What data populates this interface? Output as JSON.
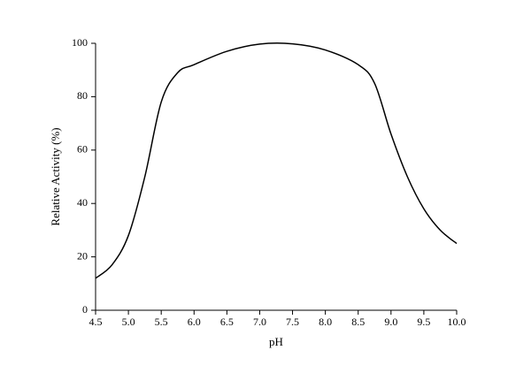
{
  "chart_data": {
    "type": "line",
    "x_label": "pH",
    "y_label": "Relative Activity (%)",
    "x": [
      4.5,
      4.75,
      5.0,
      5.25,
      5.5,
      5.75,
      6.0,
      6.5,
      7.0,
      7.5,
      8.0,
      8.5,
      8.75,
      9.0,
      9.25,
      9.5,
      9.75,
      10.0
    ],
    "values": [
      12,
      17,
      28,
      50,
      78,
      89,
      92,
      97,
      99.7,
      99.8,
      97.5,
      92,
      85,
      66,
      50,
      38,
      30,
      25
    ],
    "color": "#000000",
    "xlim": [
      4.5,
      10.0
    ],
    "xticks": [
      4.5,
      {
        "value": 5,
        "label": "5.0"
      },
      5.5,
      {
        "value": 6,
        "label": "6.0"
      },
      6.5,
      {
        "value": 7,
        "label": "7.0"
      },
      7.5,
      {
        "value": 8,
        "label": "8.0"
      },
      8.5,
      {
        "value": 9,
        "label": "9.0"
      },
      9.5,
      {
        "value": 10,
        "label": "10.0"
      }
    ],
    "ylim": [
      0,
      100
    ],
    "yticks": [
      0,
      20,
      40,
      60,
      80,
      100
    ],
    "grid": false
  }
}
